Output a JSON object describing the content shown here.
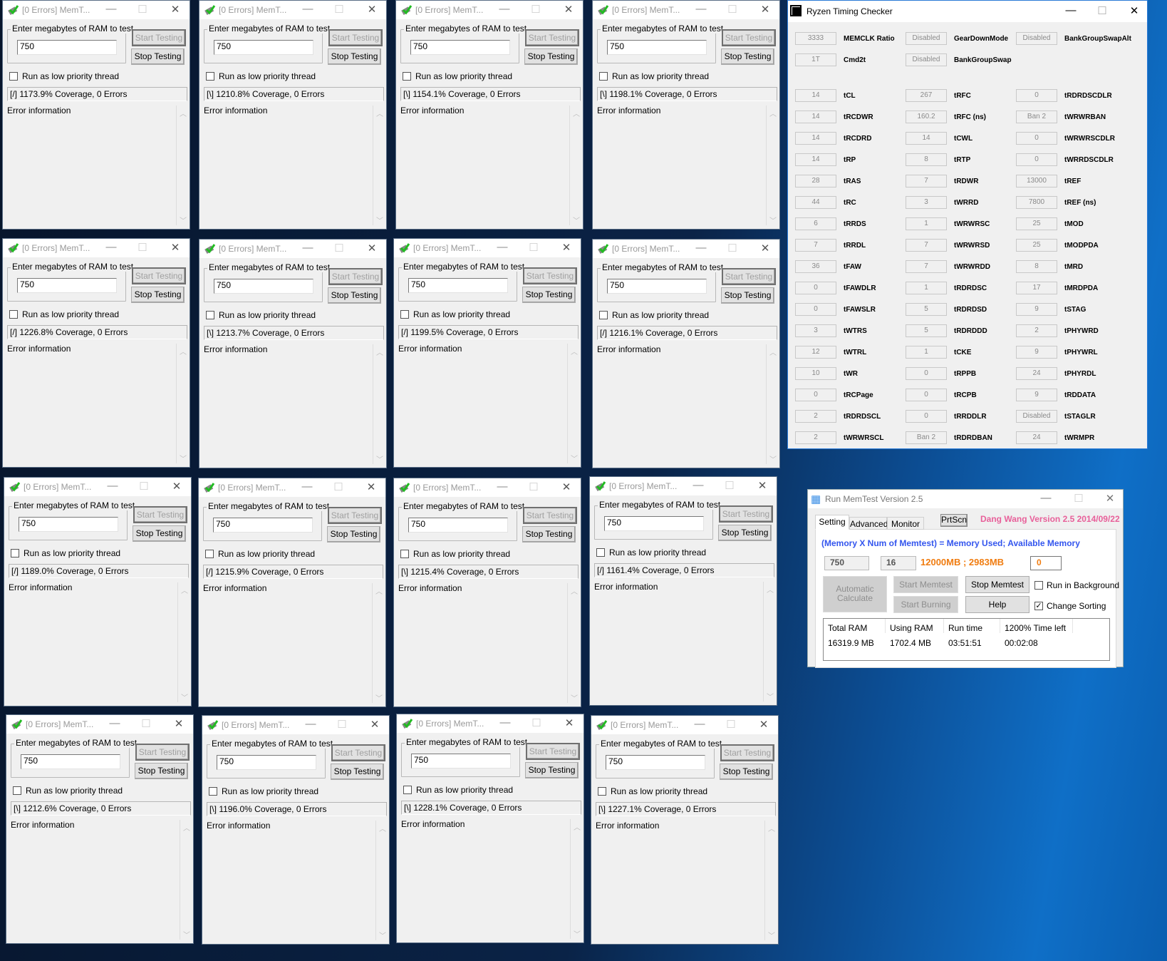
{
  "memtest": {
    "title": "[0 Errors] MemT...",
    "group_label": "Enter megabytes of RAM to test",
    "ram_value": "750",
    "start_label": "Start Testing",
    "stop_label": "Stop Testing",
    "low_priority_label": "Run as low priority thread",
    "error_info_label": "Error information",
    "window_controls": {
      "minimize": "—",
      "maximize": "☐",
      "close": "✕"
    },
    "instances": [
      {
        "status": "[/]  1173.9% Coverage, 0 Errors"
      },
      {
        "status": "[\\]  1210.8% Coverage, 0 Errors"
      },
      {
        "status": "[\\]  1154.1% Coverage, 0 Errors"
      },
      {
        "status": "[\\]  1198.1% Coverage, 0 Errors"
      },
      {
        "status": "[/]  1226.8% Coverage, 0 Errors"
      },
      {
        "status": "[\\]  1213.7% Coverage, 0 Errors"
      },
      {
        "status": "[/]  1199.5% Coverage, 0 Errors"
      },
      {
        "status": "[/]  1216.1% Coverage, 0 Errors"
      },
      {
        "status": "[/]  1189.0% Coverage, 0 Errors"
      },
      {
        "status": "[/]  1215.9% Coverage, 0 Errors"
      },
      {
        "status": "[\\]  1215.4% Coverage, 0 Errors"
      },
      {
        "status": "[/]  1161.4% Coverage, 0 Errors"
      },
      {
        "status": "[\\]  1212.6% Coverage, 0 Errors"
      },
      {
        "status": "[\\]  1196.0% Coverage, 0 Errors"
      },
      {
        "status": "[\\]  1228.1% Coverage, 0 Errors"
      },
      {
        "status": "[\\]  1227.1% Coverage, 0 Errors"
      }
    ]
  },
  "ryzen": {
    "title": "Ryzen Timing Checker",
    "top_rows": [
      [
        {
          "value": "3333",
          "label": "MEMCLK Ratio"
        },
        {
          "value": "Disabled",
          "label": "GearDownMode"
        },
        {
          "value": "Disabled",
          "label": "BankGroupSwapAlt"
        }
      ],
      [
        {
          "value": "1T",
          "label": "Cmd2t"
        },
        {
          "value": "Disabled",
          "label": "BankGroupSwap"
        }
      ]
    ],
    "timing_rows": [
      [
        {
          "value": "14",
          "label": "tCL"
        },
        {
          "value": "267",
          "label": "tRFC"
        },
        {
          "value": "0",
          "label": "tRDRDSCDLR"
        }
      ],
      [
        {
          "value": "14",
          "label": "tRCDWR"
        },
        {
          "value": "160.2",
          "label": "tRFC (ns)"
        },
        {
          "value": "Ban 2",
          "label": "tWRWRBAN"
        }
      ],
      [
        {
          "value": "14",
          "label": "tRCDRD"
        },
        {
          "value": "14",
          "label": "tCWL"
        },
        {
          "value": "0",
          "label": "tWRWRSCDLR"
        }
      ],
      [
        {
          "value": "14",
          "label": "tRP"
        },
        {
          "value": "8",
          "label": "tRTP"
        },
        {
          "value": "0",
          "label": "tWRRDSCDLR"
        }
      ],
      [
        {
          "value": "28",
          "label": "tRAS"
        },
        {
          "value": "7",
          "label": "tRDWR"
        },
        {
          "value": "13000",
          "label": "tREF"
        }
      ],
      [
        {
          "value": "44",
          "label": "tRC"
        },
        {
          "value": "3",
          "label": "tWRRD"
        },
        {
          "value": "7800",
          "label": "tREF (ns)"
        }
      ],
      [
        {
          "value": "6",
          "label": "tRRDS"
        },
        {
          "value": "1",
          "label": "tWRWRSC"
        },
        {
          "value": "25",
          "label": "tMOD"
        }
      ],
      [
        {
          "value": "7",
          "label": "tRRDL"
        },
        {
          "value": "7",
          "label": "tWRWRSD"
        },
        {
          "value": "25",
          "label": "tMODPDA"
        }
      ],
      [
        {
          "value": "36",
          "label": "tFAW"
        },
        {
          "value": "7",
          "label": "tWRWRDD"
        },
        {
          "value": "8",
          "label": "tMRD"
        }
      ],
      [
        {
          "value": "0",
          "label": "tFAWDLR"
        },
        {
          "value": "1",
          "label": "tRDRDSC"
        },
        {
          "value": "17",
          "label": "tMRDPDA"
        }
      ],
      [
        {
          "value": "0",
          "label": "tFAWSLR"
        },
        {
          "value": "5",
          "label": "tRDRDSD"
        },
        {
          "value": "9",
          "label": "tSTAG"
        }
      ],
      [
        {
          "value": "3",
          "label": "tWTRS"
        },
        {
          "value": "5",
          "label": "tRDRDDD"
        },
        {
          "value": "2",
          "label": "tPHYWRD"
        }
      ],
      [
        {
          "value": "12",
          "label": "tWTRL"
        },
        {
          "value": "1",
          "label": "tCKE"
        },
        {
          "value": "9",
          "label": "tPHYWRL"
        }
      ],
      [
        {
          "value": "10",
          "label": "tWR"
        },
        {
          "value": "0",
          "label": "tRPPB"
        },
        {
          "value": "24",
          "label": "tPHYRDL"
        }
      ],
      [
        {
          "value": "0",
          "label": "tRCPage"
        },
        {
          "value": "0",
          "label": "tRCPB"
        },
        {
          "value": "9",
          "label": "tRDDATA"
        }
      ],
      [
        {
          "value": "2",
          "label": "tRDRDSCL"
        },
        {
          "value": "0",
          "label": "tRRDDLR"
        },
        {
          "value": "Disabled",
          "label": "tSTAGLR"
        }
      ],
      [
        {
          "value": "2",
          "label": "tWRWRSCL"
        },
        {
          "value": "Ban 2",
          "label": "tRDRDBAN"
        },
        {
          "value": "24",
          "label": "tWRMPR"
        }
      ]
    ]
  },
  "runmemtest": {
    "title": "Run MemTest Version 2.5",
    "tabs": [
      "Setting",
      "Advanced",
      "Monitor"
    ],
    "prtscn": "PrtScn",
    "version_text": "Dang Wang Version 2.5 2014/09/22",
    "formula": "(Memory  X Num of Memtest) = Memory Used; Available Memory",
    "memory_value": "750",
    "num_value": "16",
    "usage_text": "12000MB ; 2983MB",
    "extra_value": "0",
    "auto_calc": [
      "Automatic",
      "Calculate"
    ],
    "start_memtest": "Start Memtest",
    "stop_memtest": "Stop Memtest",
    "start_burning": "Start Burning",
    "help": "Help",
    "run_background": {
      "label": "Run in Background",
      "checked": false
    },
    "change_sorting": {
      "label": "Change Sorting",
      "checked": true
    },
    "stats_headers": [
      "Total RAM",
      "Using RAM",
      "Run time",
      "1200% Time left"
    ],
    "stats_values": [
      "16319.9 MB",
      "1702.4 MB",
      "03:51:51",
      "00:02:08"
    ],
    "colors": {
      "formula": "#3355ee",
      "usage": "#f07c10",
      "version": "#e8609a"
    }
  }
}
